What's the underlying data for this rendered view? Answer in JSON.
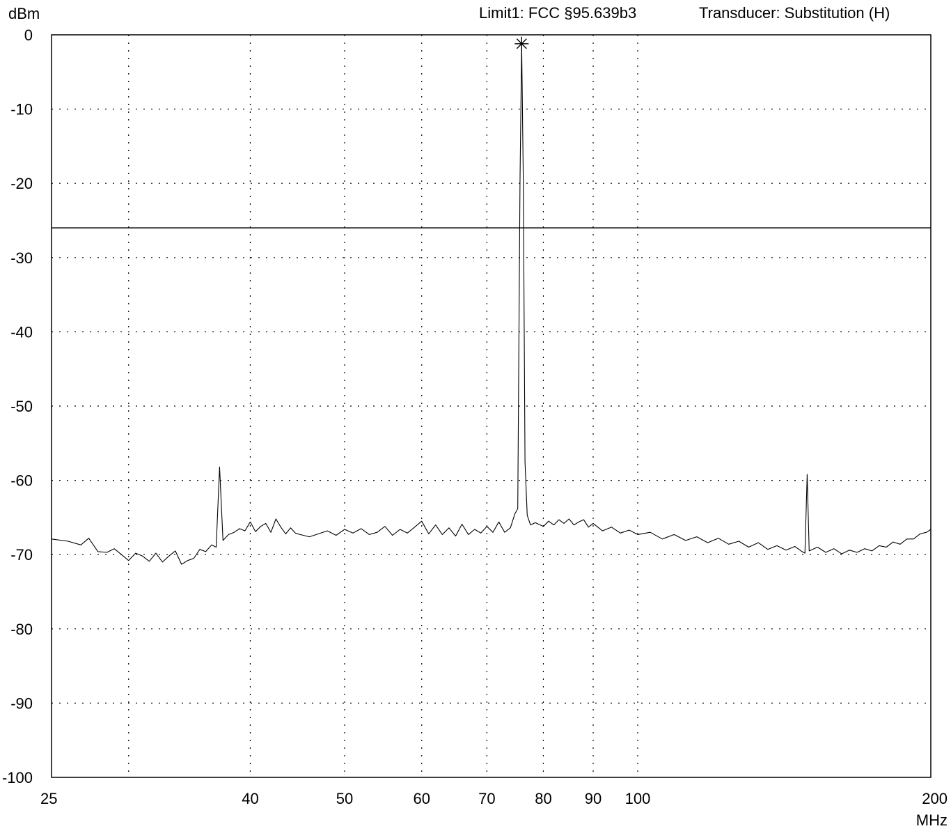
{
  "header": {
    "limit": "Limit1: FCC §95.639b3",
    "transducer": "Transducer: Substitution (H)"
  },
  "chart_data": {
    "type": "line",
    "ylabel": "dBm",
    "xlabel": "MHz",
    "x_scale": "log",
    "xlim": [
      25,
      200
    ],
    "ylim": [
      -100,
      0
    ],
    "grid": true,
    "x_ticks": [
      25,
      30,
      40,
      50,
      60,
      70,
      80,
      90,
      100,
      200
    ],
    "x_tick_labels": [
      "25",
      "",
      "40",
      "50",
      "60",
      "70",
      "80",
      "90",
      "100",
      "200"
    ],
    "y_ticks": [
      0,
      -10,
      -20,
      -30,
      -40,
      -50,
      -60,
      -70,
      -80,
      -90,
      -100
    ],
    "y_tick_labels": [
      "0",
      "-10",
      "-20",
      "-30",
      "-40",
      "-50",
      "-60",
      "-70",
      "-80",
      "-90",
      "-100"
    ],
    "limit_line": -26,
    "marker": {
      "x": 76.0,
      "y": -1.2,
      "symbol": "asterisk"
    },
    "series": [
      {
        "values": [
          [
            25,
            -67.9
          ],
          [
            26,
            -68.2
          ],
          [
            26.8,
            -68.7
          ],
          [
            27.3,
            -67.8
          ],
          [
            27.9,
            -69.6
          ],
          [
            28.5,
            -69.7
          ],
          [
            29.0,
            -69.2
          ],
          [
            29.5,
            -70.0
          ],
          [
            30.0,
            -70.8
          ],
          [
            30.5,
            -69.8
          ],
          [
            31.0,
            -70.2
          ],
          [
            31.5,
            -70.9
          ],
          [
            32.0,
            -69.8
          ],
          [
            32.5,
            -71.0
          ],
          [
            33.0,
            -70.2
          ],
          [
            33.5,
            -69.5
          ],
          [
            34.0,
            -71.3
          ],
          [
            34.5,
            -70.8
          ],
          [
            35.0,
            -70.5
          ],
          [
            35.5,
            -69.3
          ],
          [
            36.0,
            -69.6
          ],
          [
            36.5,
            -68.7
          ],
          [
            36.9,
            -69.0
          ],
          [
            37.2,
            -58.2
          ],
          [
            37.5,
            -68.1
          ],
          [
            38.0,
            -67.3
          ],
          [
            38.5,
            -67.0
          ],
          [
            39.0,
            -66.5
          ],
          [
            39.5,
            -66.8
          ],
          [
            40.0,
            -65.6
          ],
          [
            40.5,
            -66.9
          ],
          [
            41.0,
            -66.2
          ],
          [
            41.5,
            -65.8
          ],
          [
            42.0,
            -67.0
          ],
          [
            42.5,
            -65.2
          ],
          [
            43.0,
            -66.3
          ],
          [
            43.5,
            -67.2
          ],
          [
            44.0,
            -66.4
          ],
          [
            44.5,
            -67.1
          ],
          [
            45.0,
            -67.3
          ],
          [
            46.0,
            -67.6
          ],
          [
            47.0,
            -67.2
          ],
          [
            48.0,
            -66.8
          ],
          [
            49.0,
            -67.4
          ],
          [
            50.0,
            -66.6
          ],
          [
            51.0,
            -67.1
          ],
          [
            52.0,
            -66.5
          ],
          [
            53.0,
            -67.3
          ],
          [
            54.0,
            -67.0
          ],
          [
            55.0,
            -66.2
          ],
          [
            56.0,
            -67.4
          ],
          [
            57.0,
            -66.6
          ],
          [
            58.0,
            -67.1
          ],
          [
            59.0,
            -66.3
          ],
          [
            60.0,
            -65.5
          ],
          [
            61.0,
            -67.2
          ],
          [
            62.0,
            -66.0
          ],
          [
            63.0,
            -67.3
          ],
          [
            64.0,
            -66.4
          ],
          [
            65.0,
            -67.5
          ],
          [
            66.0,
            -65.9
          ],
          [
            67.0,
            -67.3
          ],
          [
            68.0,
            -66.6
          ],
          [
            69.0,
            -67.1
          ],
          [
            70.0,
            -66.2
          ],
          [
            71.0,
            -67.0
          ],
          [
            72.0,
            -65.6
          ],
          [
            73.0,
            -67.0
          ],
          [
            74.0,
            -66.4
          ],
          [
            74.8,
            -64.5
          ],
          [
            75.3,
            -63.8
          ],
          [
            75.7,
            -20.0
          ],
          [
            76.0,
            -1.2
          ],
          [
            76.3,
            -20.0
          ],
          [
            76.6,
            -57.5
          ],
          [
            77.0,
            -64.7
          ],
          [
            77.6,
            -66.0
          ],
          [
            78.5,
            -65.7
          ],
          [
            80.0,
            -66.2
          ],
          [
            81.0,
            -65.5
          ],
          [
            82.0,
            -66.0
          ],
          [
            83.0,
            -65.3
          ],
          [
            84.0,
            -65.8
          ],
          [
            85.0,
            -65.2
          ],
          [
            86.0,
            -66.0
          ],
          [
            87.0,
            -65.6
          ],
          [
            88.0,
            -65.3
          ],
          [
            89.0,
            -66.3
          ],
          [
            90.0,
            -65.8
          ],
          [
            92.0,
            -66.8
          ],
          [
            94.0,
            -66.3
          ],
          [
            96.0,
            -67.1
          ],
          [
            98.0,
            -66.7
          ],
          [
            100.0,
            -67.3
          ],
          [
            103.0,
            -67.0
          ],
          [
            106.0,
            -67.9
          ],
          [
            109.0,
            -67.3
          ],
          [
            112.0,
            -68.1
          ],
          [
            115.0,
            -67.6
          ],
          [
            118.0,
            -68.4
          ],
          [
            121.0,
            -67.8
          ],
          [
            124.0,
            -68.6
          ],
          [
            127.0,
            -68.2
          ],
          [
            130.0,
            -69.0
          ],
          [
            133.0,
            -68.4
          ],
          [
            136.0,
            -69.3
          ],
          [
            139.0,
            -68.8
          ],
          [
            142.0,
            -69.4
          ],
          [
            145.0,
            -68.9
          ],
          [
            147.5,
            -69.6
          ],
          [
            148.5,
            -69.8
          ],
          [
            149.3,
            -59.2
          ],
          [
            150.0,
            -69.5
          ],
          [
            153.0,
            -69.0
          ],
          [
            156.0,
            -69.7
          ],
          [
            159.0,
            -69.2
          ],
          [
            162.0,
            -69.9
          ],
          [
            165.0,
            -69.4
          ],
          [
            168.0,
            -69.7
          ],
          [
            171.0,
            -69.2
          ],
          [
            174.0,
            -69.5
          ],
          [
            177.0,
            -68.8
          ],
          [
            180.0,
            -69.0
          ],
          [
            183.0,
            -68.3
          ],
          [
            186.0,
            -68.6
          ],
          [
            189.0,
            -67.9
          ],
          [
            192.0,
            -67.9
          ],
          [
            195.0,
            -67.2
          ],
          [
            198.0,
            -67.0
          ],
          [
            200.0,
            -66.6
          ]
        ]
      }
    ]
  }
}
